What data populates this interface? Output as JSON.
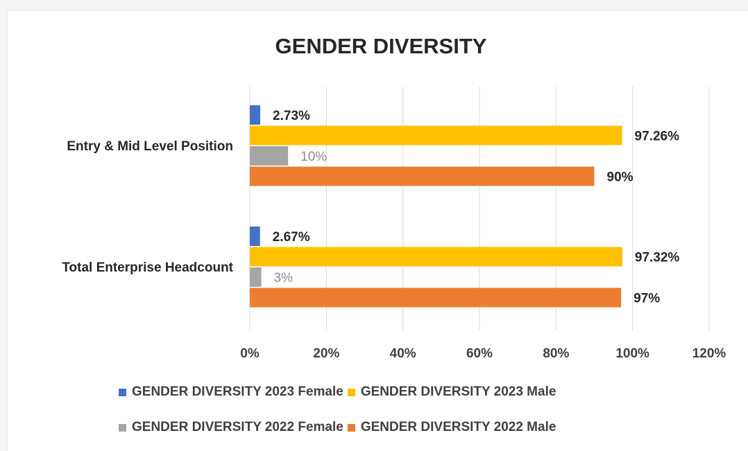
{
  "chart_data": {
    "type": "bar",
    "orientation": "horizontal",
    "title": "GENDER DIVERSITY",
    "categories": [
      "Entry & Mid Level Position",
      "Total Enterprise Headcount"
    ],
    "series": [
      {
        "name": "GENDER DIVERSITY 2023 Female",
        "values": [
          2.73,
          2.67
        ],
        "labels": [
          "2.73%",
          "2.67%"
        ],
        "color": "#4472c4"
      },
      {
        "name": "GENDER DIVERSITY 2023 Male",
        "values": [
          97.26,
          97.32
        ],
        "labels": [
          "97.26%",
          "97.32%"
        ],
        "color": "#ffc000"
      },
      {
        "name": "GENDER DIVERSITY 2022 Female",
        "values": [
          10,
          3
        ],
        "labels": [
          "10%",
          "3%"
        ],
        "color": "#a5a5a5"
      },
      {
        "name": "GENDER DIVERSITY 2022 Male",
        "values": [
          90,
          97
        ],
        "labels": [
          "90%",
          "97%"
        ],
        "color": "#ed7d31"
      }
    ],
    "xlim": [
      0,
      120
    ],
    "xticks": [
      "0%",
      "20%",
      "40%",
      "60%",
      "80%",
      "100%",
      "120%"
    ],
    "grid": "vertical",
    "legend_position": "bottom"
  }
}
